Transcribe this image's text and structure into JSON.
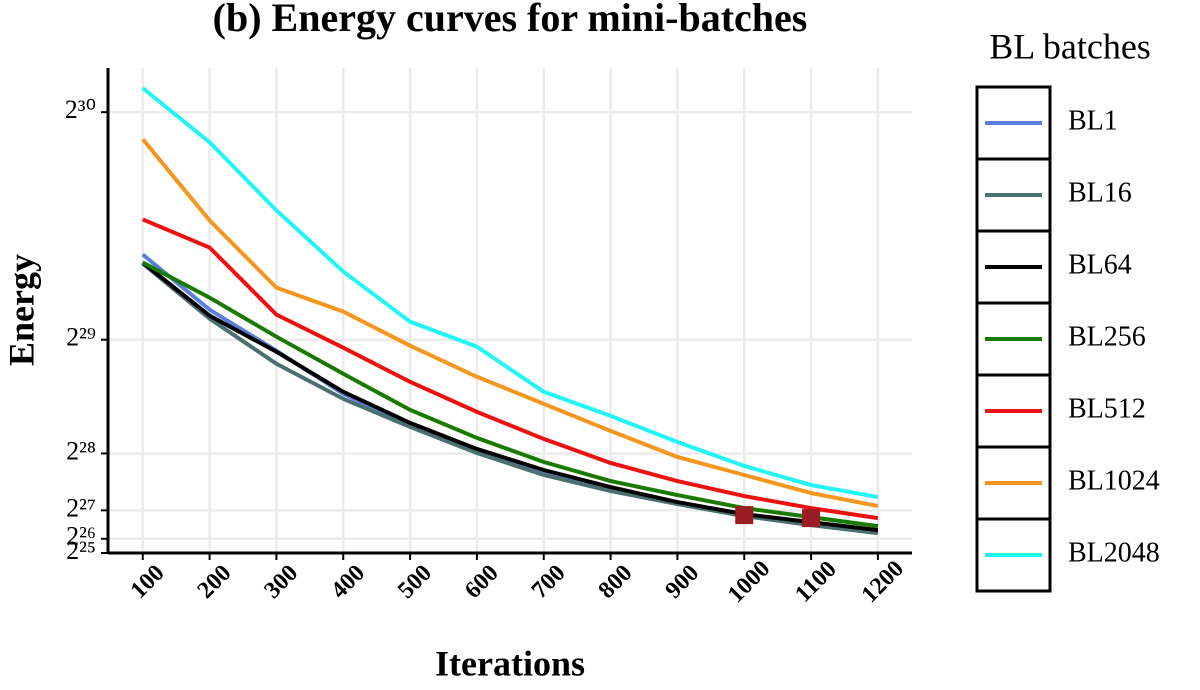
{
  "chart_data": {
    "type": "line",
    "title": "(b) Energy curves for mini-batches",
    "x_label": "Iterations",
    "y_label": "Energy",
    "legend_title": "BL batches",
    "x": [
      100,
      200,
      300,
      400,
      500,
      600,
      700,
      800,
      900,
      1000,
      1100,
      1200
    ],
    "xlim": [
      48,
      1251
    ],
    "xticks": [
      100,
      200,
      300,
      400,
      500,
      600,
      700,
      800,
      900,
      1000,
      1100,
      1200
    ],
    "ylim": [
      33554432,
      1178000000
    ],
    "yticks": [
      {
        "value": 33554432,
        "label": "2²⁵"
      },
      {
        "value": 67108864,
        "label": "2²⁶"
      },
      {
        "value": 134217728,
        "label": "2²⁷"
      },
      {
        "value": 268435456,
        "label": "2²⁸"
      },
      {
        "value": 536870912,
        "label": "2²⁹"
      },
      {
        "value": 1073741824,
        "label": "2³⁰"
      }
    ],
    "grid": true,
    "legend": "right",
    "series": [
      {
        "name": "BL1",
        "color": "#5b7fdc",
        "values": [
          737900000,
          607800000,
          510800000,
          409100000,
          335800000,
          274300000,
          224700000,
          184500000,
          151400000,
          123000000,
          101700000,
          82800000
        ]
      },
      {
        "name": "BL16",
        "color": "#4a7070",
        "values": [
          716600000,
          586500000,
          480100000,
          397300000,
          331100000,
          269600000,
          217600000,
          179700000,
          149000000,
          120600000,
          99300000,
          80400000
        ]
      },
      {
        "name": "BL64",
        "color": "#000000",
        "values": [
          719000000,
          593600000,
          508500000,
          413900000,
          340600000,
          279100000,
          229400000,
          189200000,
          153700000,
          125300000,
          106400000,
          87500000
        ]
      },
      {
        "name": "BL256",
        "color": "#1a7a00",
        "values": [
          719000000,
          636200000,
          544000000,
          456400000,
          371300000,
          305100000,
          248300000,
          203400000,
          170300000,
          139500000,
          118300000,
          97000000
        ]
      },
      {
        "name": "BL512",
        "color": "#ee1111",
        "values": [
          820700000,
          754400000,
          596000000,
          518000000,
          437500000,
          366600000,
          302700000,
          246000000,
          203400000,
          167900000,
          139500000,
          115900000
        ]
      },
      {
        "name": "BL1024",
        "color": "#f5961e",
        "values": [
          1009900000,
          818300000,
          659800000,
          603100000,
          522700000,
          449400000,
          385500000,
          321600000,
          260200000,
          217600000,
          175000000,
          144300000
        ]
      },
      {
        "name": "BL2048",
        "color": "#22f5f5",
        "values": [
          1130500000,
          1002800000,
          842000000,
          697700000,
          579400000,
          520300000,
          413900000,
          357100000,
          295600000,
          238900000,
          193900000,
          165600000
        ]
      }
    ],
    "markers": {
      "color": "#9b1c22",
      "x": [
        1000,
        1100
      ],
      "values": [
        123000000,
        115900000
      ]
    }
  }
}
